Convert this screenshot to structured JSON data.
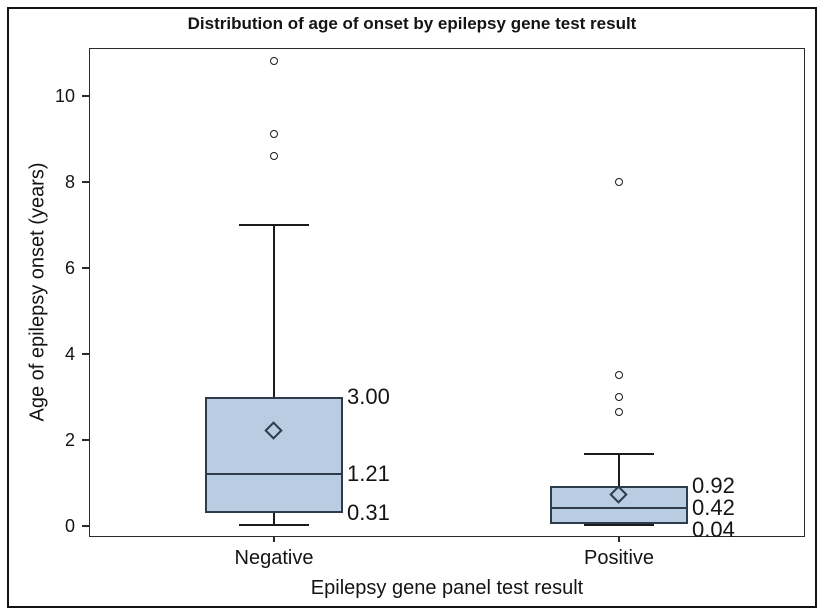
{
  "chart_data": {
    "type": "boxplot",
    "title": "Distribution of age of onset by epilepsy gene test result",
    "xlabel": "Epilepsy gene panel test result",
    "ylabel": "Age of epilepsy onset (years)",
    "ylim": [
      0,
      11.2
    ],
    "yticks": [
      0,
      2,
      4,
      6,
      8,
      10
    ],
    "grid": false,
    "legend": "none",
    "categories": [
      "Negative",
      "Positive"
    ],
    "groups": [
      {
        "category": "Negative",
        "q1": 0.31,
        "median": 1.21,
        "q3": 3.0,
        "mean": 2.2,
        "whisker_low": 0.02,
        "whisker_high": 7.0,
        "outliers": [
          8.6,
          9.1,
          10.8
        ],
        "stat_labels": [
          {
            "stat": "q3",
            "text": "3.00"
          },
          {
            "stat": "median",
            "text": "1.21"
          },
          {
            "stat": "q1",
            "text": "0.31"
          }
        ]
      },
      {
        "category": "Positive",
        "q1": 0.04,
        "median": 0.42,
        "q3": 0.92,
        "mean": 0.72,
        "whisker_low": 0.02,
        "whisker_high": 1.67,
        "outliers": [
          2.65,
          3.0,
          3.5,
          8.0
        ],
        "stat_labels": [
          {
            "stat": "q3",
            "text": "0.92"
          },
          {
            "stat": "median",
            "text": "0.42"
          },
          {
            "stat": "q1",
            "text": "0.04"
          }
        ]
      }
    ],
    "colors": {
      "box_fill": "#b9cde2",
      "box_stroke": "#2e3b4a",
      "whisker": "#1b1b1b",
      "outlier_fill": "#ffffff",
      "text": "#141414"
    }
  }
}
